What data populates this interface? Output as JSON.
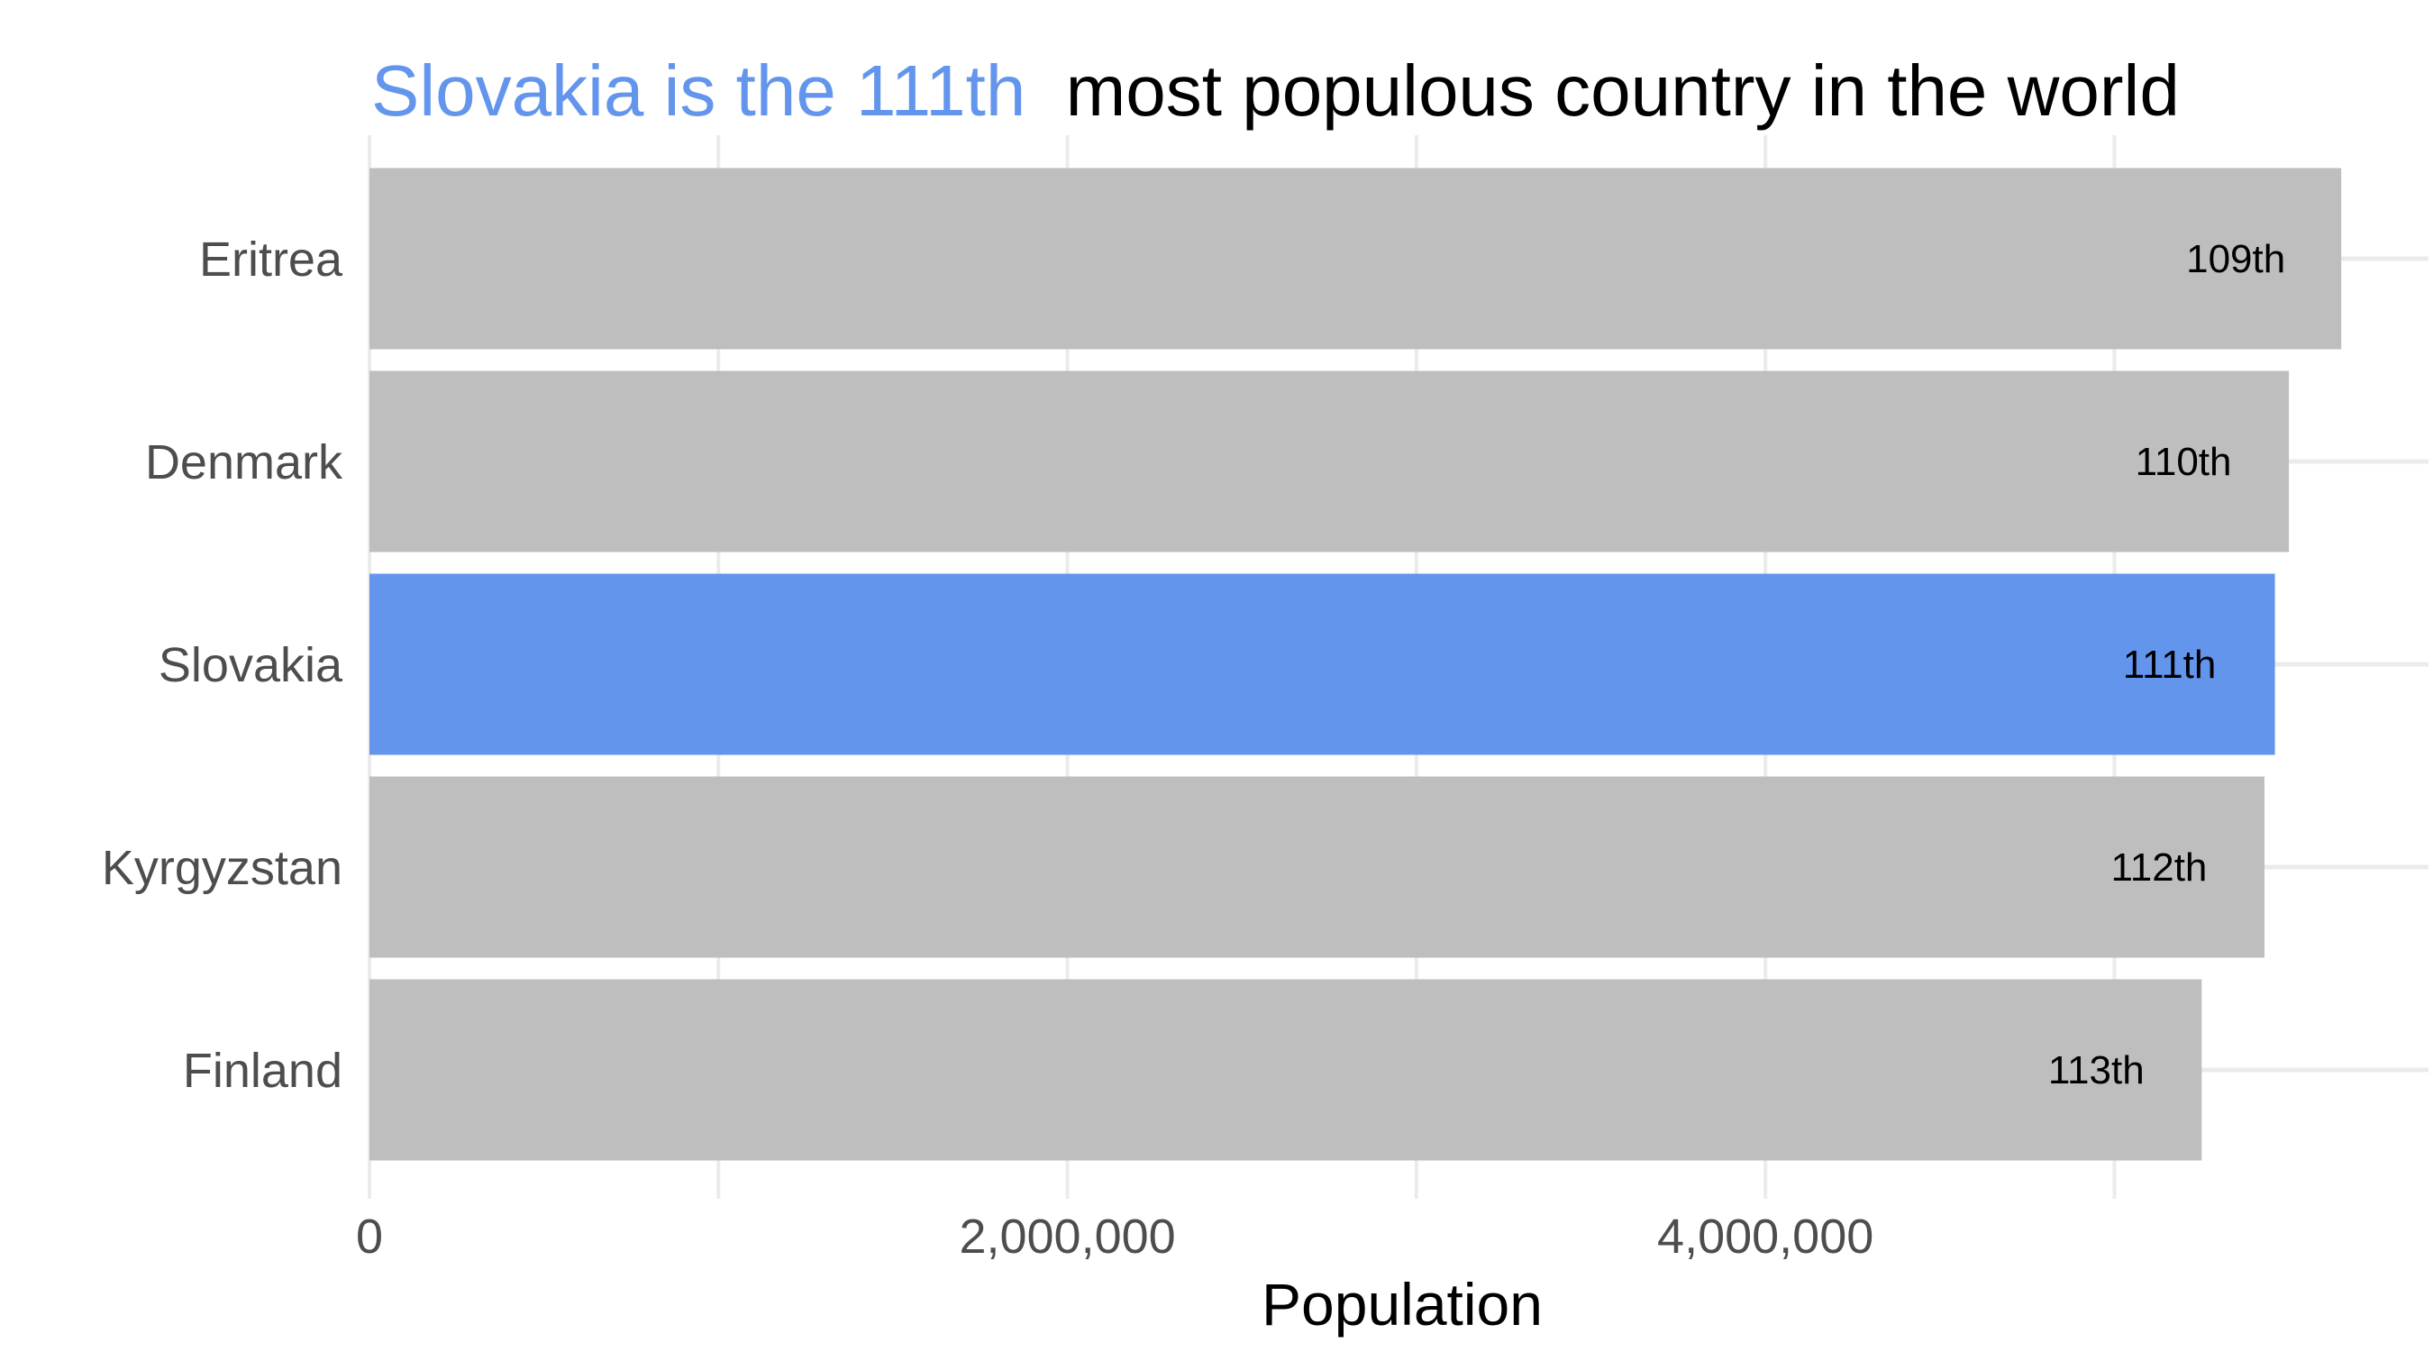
{
  "chart_data": {
    "type": "bar",
    "orientation": "horizontal",
    "title": "Slovakia is the 111th most populous country in the world",
    "title_parts": {
      "highlight": "Slovakia is the 111th",
      "rest": "most populous country in the world"
    },
    "categories": [
      "Eritrea",
      "Denmark",
      "Slovakia",
      "Kyrgyzstan",
      "Finland"
    ],
    "values": [
      5650000,
      5500000,
      5460000,
      5430000,
      5250000
    ],
    "data_labels": [
      "109th",
      "110th",
      "111th",
      "112th",
      "113th"
    ],
    "highlight_category": "Slovakia",
    "xlabel": "Population",
    "ylabel": "",
    "xlim": [
      0,
      5900000
    ],
    "x_ticks": [
      0,
      2000000,
      4000000
    ],
    "x_tick_labels": [
      "0",
      "2,000,000",
      "4,000,000"
    ],
    "x_minor_ticks": [
      1000000,
      3000000,
      5000000
    ],
    "grid": true,
    "legend": "none",
    "colors": {
      "highlight": "#6495ED",
      "default_bar": "#BEBEBE",
      "grid": "#EBEBEB",
      "title_text": "#000000",
      "tick_text": "#4D4D4D"
    }
  }
}
